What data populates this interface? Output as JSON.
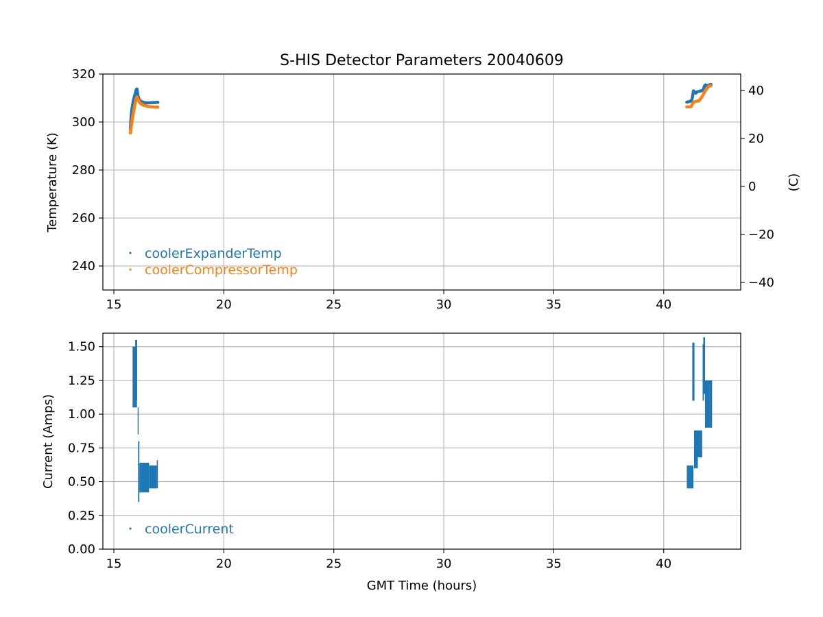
{
  "figure": {
    "title": "S-HIS Detector Parameters 20040609"
  },
  "chart_data": [
    {
      "type": "scatter",
      "title": "S-HIS Detector Parameters 20040609",
      "xlabel": "",
      "ylabel": "Temperature (K)",
      "y2label": "(C)",
      "xlim": [
        14.5,
        43.5
      ],
      "ylim": [
        230,
        320
      ],
      "y2lim": [
        -43.15,
        46.85
      ],
      "xticks": [
        15,
        20,
        25,
        30,
        35,
        40
      ],
      "xtick_labels": [
        "15",
        "20",
        "25",
        "30",
        "35",
        "40"
      ],
      "yticks": [
        240,
        260,
        280,
        300,
        320
      ],
      "ytick_labels": [
        "240",
        "260",
        "280",
        "300",
        "320"
      ],
      "y2ticks": [
        -40,
        -20,
        0,
        20,
        40
      ],
      "y2tick_labels": [
        "−40",
        "−20",
        "0",
        "20",
        "40"
      ],
      "grid": true,
      "legend_position": "lower-left",
      "series": [
        {
          "name": "coolerExpanderTemp",
          "color": "#1f77b4",
          "x": [
            15.75,
            15.78,
            15.81,
            15.84,
            15.87,
            15.9,
            15.93,
            15.96,
            15.99,
            16.02,
            16.05,
            16.08,
            16.12,
            16.18,
            16.25,
            16.35,
            16.45,
            16.55,
            16.65,
            16.75,
            16.85,
            16.95,
            17.0,
            41.05,
            41.15,
            41.25,
            41.3,
            41.35,
            41.4,
            41.45,
            41.5,
            41.6,
            41.7,
            41.8,
            41.85,
            41.9,
            41.95,
            42.0,
            42.05,
            42.1,
            42.15
          ],
          "y": [
            297.0,
            301.5,
            304.5,
            306.5,
            308.0,
            309.5,
            310.5,
            311.5,
            312.5,
            313.5,
            313.8,
            311.5,
            310.0,
            309.0,
            308.5,
            308.2,
            308.0,
            308.0,
            308.0,
            308.1,
            308.1,
            308.2,
            308.2,
            308.3,
            308.5,
            308.8,
            310.0,
            313.0,
            312.5,
            312.0,
            312.5,
            312.8,
            313.0,
            313.3,
            315.0,
            315.5,
            315.2,
            315.0,
            315.3,
            315.6,
            315.7
          ]
        },
        {
          "name": "coolerCompressorTemp",
          "color": "#ff7f0e",
          "x": [
            15.75,
            15.78,
            15.81,
            15.84,
            15.87,
            15.9,
            15.93,
            15.96,
            15.99,
            16.02,
            16.05,
            16.08,
            16.12,
            16.18,
            16.25,
            16.35,
            16.45,
            16.55,
            16.65,
            16.75,
            16.85,
            16.95,
            17.0,
            41.05,
            41.15,
            41.25,
            41.3,
            41.35,
            41.4,
            41.45,
            41.5,
            41.6,
            41.7,
            41.8,
            41.85,
            41.9,
            41.95,
            42.0,
            42.05,
            42.1,
            42.15
          ],
          "y": [
            295.5,
            297.5,
            299.5,
            301.5,
            303.0,
            304.5,
            306.0,
            307.5,
            308.8,
            309.8,
            310.5,
            310.0,
            309.0,
            308.0,
            307.5,
            307.0,
            306.8,
            306.5,
            306.4,
            306.3,
            306.2,
            306.2,
            306.2,
            306.3,
            306.3,
            306.4,
            307.5,
            308.2,
            308.5,
            308.6,
            308.7,
            308.9,
            310.0,
            311.5,
            312.5,
            313.2,
            313.8,
            314.5,
            314.9,
            315.1,
            315.2
          ]
        }
      ]
    },
    {
      "type": "scatter",
      "xlabel": "GMT Time (hours)",
      "ylabel": "Current (Amps)",
      "xlim": [
        14.5,
        43.5
      ],
      "ylim": [
        0,
        1.6
      ],
      "xticks": [
        15,
        20,
        25,
        30,
        35,
        40
      ],
      "xtick_labels": [
        "15",
        "20",
        "25",
        "30",
        "35",
        "40"
      ],
      "yticks": [
        0,
        0.25,
        0.5,
        0.75,
        1.0,
        1.25,
        1.5
      ],
      "ytick_labels": [
        "0.00",
        "0.25",
        "0.50",
        "0.75",
        "1.00",
        "1.25",
        "1.50"
      ],
      "grid": true,
      "legend_position": "lower-left",
      "series": [
        {
          "name": "coolerCurrent",
          "color": "#1f77b4",
          "segments": [
            {
              "x0": 15.85,
              "x1": 16.05,
              "low": 1.05,
              "high": 1.5
            },
            {
              "x0": 15.97,
              "x1": 16.06,
              "low": 1.1,
              "high": 1.55
            },
            {
              "x0": 16.08,
              "x1": 16.12,
              "low": 0.85,
              "high": 1.05
            },
            {
              "x0": 16.1,
              "x1": 16.16,
              "low": 0.35,
              "high": 0.8
            },
            {
              "x0": 16.16,
              "x1": 16.6,
              "low": 0.42,
              "high": 0.64
            },
            {
              "x0": 16.6,
              "x1": 16.95,
              "low": 0.45,
              "high": 0.62
            },
            {
              "x0": 16.95,
              "x1": 17.0,
              "low": 0.45,
              "high": 0.66
            },
            {
              "x0": 41.05,
              "x1": 41.35,
              "low": 0.45,
              "high": 0.62
            },
            {
              "x0": 41.3,
              "x1": 41.4,
              "low": 1.1,
              "high": 1.53
            },
            {
              "x0": 41.38,
              "x1": 41.55,
              "low": 0.6,
              "high": 0.88
            },
            {
              "x0": 41.55,
              "x1": 41.75,
              "low": 0.68,
              "high": 0.88
            },
            {
              "x0": 41.77,
              "x1": 41.83,
              "low": 1.1,
              "high": 1.52
            },
            {
              "x0": 41.8,
              "x1": 41.88,
              "low": 1.15,
              "high": 1.57
            },
            {
              "x0": 41.88,
              "x1": 42.2,
              "low": 0.9,
              "high": 1.25
            }
          ]
        }
      ]
    }
  ]
}
